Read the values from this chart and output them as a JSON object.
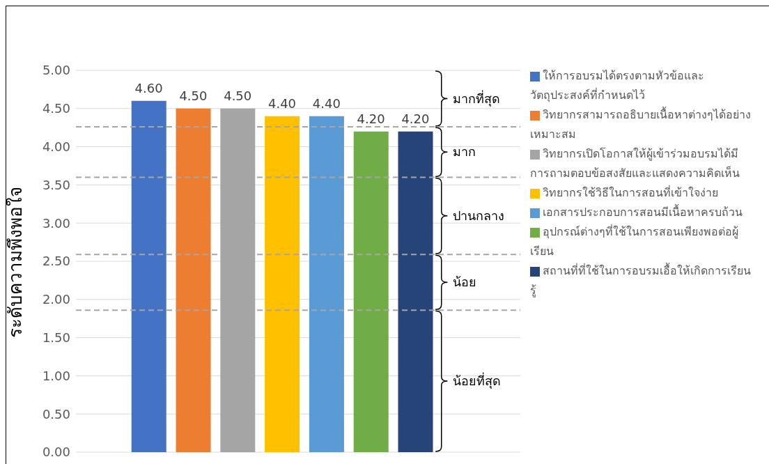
{
  "chart_data": {
    "type": "bar",
    "ylabel": "ระดับความพึงพอใจ",
    "stacked": true,
    "categories": [
      null,
      null,
      null,
      null,
      null,
      null,
      null
    ],
    "series": [
      {
        "name": "ให้การอบรมได้ตรงตามหัวข้อและวัตถุประสงค์ที่กำหนดไว้",
        "color": "#4472c4",
        "values": [
          4.6,
          null,
          null,
          null,
          null,
          null,
          null
        ],
        "value_labels": [
          "4.60",
          null,
          null,
          null,
          null,
          null,
          null
        ]
      },
      {
        "name": "วิทยากรสามารถอธิบายเนื้อหาต่างๆได้อย่างเหมาะสม",
        "color": "#ed7d31",
        "values": [
          null,
          4.5,
          null,
          null,
          null,
          null,
          null
        ],
        "value_labels": [
          null,
          "4.50",
          null,
          null,
          null,
          null,
          null
        ]
      },
      {
        "name": "วิทยากรเปิดโอกาสให้ผู้เข้าร่วมอบรมได้มีการถามตอบข้อสงสัยและแสดงความคิดเห็น",
        "color": "#a5a5a5",
        "values": [
          null,
          null,
          4.5,
          null,
          null,
          null,
          null
        ],
        "value_labels": [
          null,
          null,
          "4.50",
          null,
          null,
          null,
          null
        ]
      },
      {
        "name": "วิทยากรใช้วิธีในการสอนที่เข้าใจง่าย",
        "color": "#ffc000",
        "values": [
          null,
          null,
          null,
          4.4,
          null,
          null,
          null
        ],
        "value_labels": [
          null,
          null,
          null,
          "4.40",
          null,
          null,
          null
        ]
      },
      {
        "name": "เอกสารประกอบการสอนมีเนื้อหาครบถ้วน",
        "color": "#5b9bd5",
        "values": [
          null,
          null,
          null,
          null,
          4.4,
          null,
          null
        ],
        "value_labels": [
          null,
          null,
          null,
          null,
          "4.40",
          null,
          null
        ]
      },
      {
        "name": "อุปกรณ์ต่างๆที่ใช้ในการสอนเพียงพอต่อผู้เรียน",
        "color": "#70ad47",
        "values": [
          null,
          null,
          null,
          null,
          null,
          4.2,
          null
        ],
        "value_labels": [
          null,
          null,
          null,
          null,
          null,
          "4.20",
          null
        ]
      },
      {
        "name": "สถานที่ที่ใช้ในการอบรมเอื้อให้เกิดการเรียนรู้",
        "color": "#264478",
        "values": [
          null,
          null,
          null,
          null,
          null,
          null,
          4.2
        ],
        "value_labels": [
          null,
          null,
          null,
          null,
          null,
          null,
          "4.20"
        ]
      }
    ],
    "ylim": [
      0,
      5
    ],
    "yticks": [
      {
        "value": 0,
        "label": "0.00"
      },
      {
        "value": 0.5,
        "label": "0.50"
      },
      {
        "value": 1,
        "label": "1.00"
      },
      {
        "value": 1.5,
        "label": "1.50"
      },
      {
        "value": 2,
        "label": "2.00"
      },
      {
        "value": 2.5,
        "label": "2.50"
      },
      {
        "value": 3,
        "label": "3.00"
      },
      {
        "value": 3.5,
        "label": "3.50"
      },
      {
        "value": 4,
        "label": "4.00"
      },
      {
        "value": 4.5,
        "label": "4.50"
      },
      {
        "value": 5,
        "label": "5.00"
      }
    ],
    "grid": "y",
    "tick_labels": "y",
    "legend": "right",
    "ref_lines": [
      {
        "axis": "y",
        "value": 4.26,
        "line_style": "dashed",
        "color": "#a6a6a6"
      },
      {
        "axis": "y",
        "value": 3.6,
        "line_style": "dashed",
        "color": "#a6a6a6"
      },
      {
        "axis": "y",
        "value": 2.59,
        "line_style": "dashed",
        "color": "#a6a6a6"
      },
      {
        "axis": "y",
        "value": 1.86,
        "line_style": "dashed",
        "color": "#a6a6a6"
      }
    ],
    "annotations": [
      "มากที่สุด",
      "มาก",
      "ปานกลาง",
      "น้อย",
      "น้อยที่สุด"
    ]
  }
}
